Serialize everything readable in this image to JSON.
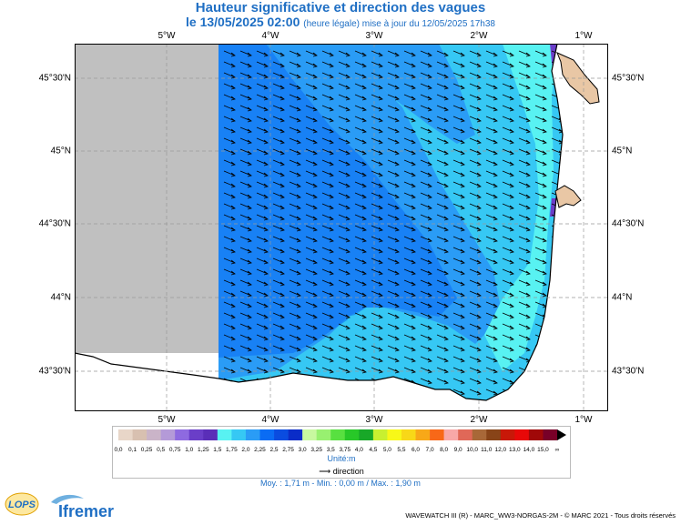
{
  "title": "Hauteur significative et direction des vagues",
  "subtitle": {
    "date": "le 13/05/2025 02:00",
    "note": "(heure légale) mise à jour du 12/05/2025 17h38"
  },
  "map": {
    "lon_labels": [
      "5°W",
      "4°W",
      "3°W",
      "2°W",
      "1°W"
    ],
    "lat_labels": [
      "45°30'N",
      "45°N",
      "44°30'N",
      "44°N",
      "43°30'N"
    ],
    "lon_range": [
      -5.9,
      -0.7
    ],
    "lat_range": [
      43.24,
      45.75
    ],
    "arrow_direction": "south-east",
    "colors": {
      "land": "#e9c7a5",
      "nodata": "#c0c0c0"
    }
  },
  "legend": {
    "levels": [
      "0,0",
      "0,1",
      "0,25",
      "0,5",
      "0,75",
      "1,0",
      "1,25",
      "1,5",
      "1,75",
      "2,0",
      "2,25",
      "2,5",
      "2,75",
      "3,0",
      "3,25",
      "3,5",
      "3,75",
      "4,0",
      "4,5",
      "5,0",
      "5,5",
      "6,0",
      "7,0",
      "8,0",
      "9,0",
      "10,0",
      "11,0",
      "12,0",
      "13,0",
      "14,0",
      "15,0",
      "∞"
    ],
    "colors": [
      "#e8d6c8",
      "#d8c0b0",
      "#cab4c8",
      "#b49ad8",
      "#8e6ae0",
      "#6a3ec8",
      "#5a2eb8",
      "#58f2f2",
      "#36c8f4",
      "#2a9cf6",
      "#0a6cf4",
      "#0a4ce0",
      "#0a2cc8",
      "#c8f8a0",
      "#98f070",
      "#58e040",
      "#28c828",
      "#18a828",
      "#c8f030",
      "#f8f818",
      "#f8d818",
      "#f8a818",
      "#f86818",
      "#f8a8a8",
      "#e06858",
      "#a86838",
      "#884418",
      "#c81808",
      "#e80808",
      "#a00808",
      "#780028"
    ],
    "unit": "Unité:m",
    "direction_label": "direction"
  },
  "stats": "Moy. : 1,71 m  -  Min. : 0,00 m / Max. : 1,90 m",
  "credit": "WAVEWATCH III (R) - MARC_WW3-NORGAS-2M - © MARC 2021 - Tous droits réservés",
  "logos": {
    "lops": "LOPS",
    "ifremer": "Ifremer"
  }
}
